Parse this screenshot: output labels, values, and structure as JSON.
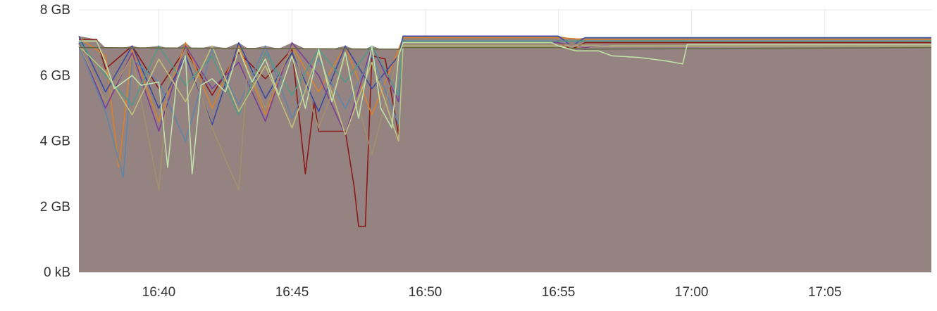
{
  "chart_data": {
    "type": "area",
    "y_unit": "bytes",
    "x_range": [
      "16:37",
      "17:09"
    ],
    "y_range": [
      0,
      8
    ],
    "y_ticks": [
      {
        "value": 0,
        "label": "0 kB"
      },
      {
        "value": 2,
        "label": "2 GB"
      },
      {
        "value": 4,
        "label": "4 GB"
      },
      {
        "value": 6,
        "label": "6 GB"
      },
      {
        "value": 8,
        "label": "8 GB"
      }
    ],
    "x_ticks": [
      {
        "value": "16:40",
        "label": "16:40"
      },
      {
        "value": "16:45",
        "label": "16:45"
      },
      {
        "value": "16:50",
        "label": "16:50"
      },
      {
        "value": "16:55",
        "label": "16:55"
      },
      {
        "value": "17:00",
        "label": "17:00"
      },
      {
        "value": "17:05",
        "label": "17:05"
      }
    ],
    "grid": true,
    "legend": "none",
    "fill_color": "#948380",
    "series": [
      {
        "color": "#8b1a1a",
        "points": [
          [
            "16:37",
            7.1
          ],
          [
            "16:37:40",
            7.1
          ],
          [
            "16:38",
            6.2
          ],
          [
            "16:39",
            6.9
          ],
          [
            "16:40",
            5.6
          ],
          [
            "16:41",
            6.8
          ],
          [
            "16:42",
            5.4
          ],
          [
            "16:43",
            6.7
          ],
          [
            "16:44",
            5.9
          ],
          [
            "16:45",
            6.8
          ],
          [
            "16:45:30",
            3.0
          ],
          [
            "16:45:50",
            5.2
          ],
          [
            "16:46",
            4.3
          ],
          [
            "16:47",
            4.3
          ],
          [
            "16:47:20",
            2.6
          ],
          [
            "16:47:30",
            1.4
          ],
          [
            "16:47:45",
            1.4
          ],
          [
            "16:48",
            6.6
          ],
          [
            "16:48:30",
            6.5
          ],
          [
            "16:49",
            4.2
          ],
          [
            "16:49:10",
            7.0
          ],
          [
            "16:55",
            7.0
          ],
          [
            "16:55:30",
            6.8
          ],
          [
            "16:56",
            7.0
          ],
          [
            "17:09",
            7.0
          ]
        ]
      },
      {
        "color": "#d9822b",
        "points": [
          [
            "16:37",
            7.15
          ],
          [
            "16:38",
            6.6
          ],
          [
            "16:38:30",
            3.2
          ],
          [
            "16:39",
            6.8
          ],
          [
            "16:40",
            4.6
          ],
          [
            "16:41",
            7.0
          ],
          [
            "16:42",
            5.0
          ],
          [
            "16:43",
            6.9
          ],
          [
            "16:44",
            4.8
          ],
          [
            "16:45",
            6.9
          ],
          [
            "16:46",
            5.5
          ],
          [
            "16:47",
            6.9
          ],
          [
            "16:48",
            4.8
          ],
          [
            "16:49",
            6.8
          ],
          [
            "16:49:10",
            7.15
          ],
          [
            "16:55",
            7.15
          ],
          [
            "16:56",
            7.1
          ],
          [
            "17:09",
            7.1
          ]
        ]
      },
      {
        "color": "#3b4ba0",
        "points": [
          [
            "16:37",
            7.2
          ],
          [
            "16:38",
            5.5
          ],
          [
            "16:39",
            6.9
          ],
          [
            "16:40",
            5.0
          ],
          [
            "16:41",
            6.6
          ],
          [
            "16:42",
            4.5
          ],
          [
            "16:43",
            7.0
          ],
          [
            "16:44",
            5.3
          ],
          [
            "16:45",
            6.7
          ],
          [
            "16:46",
            4.9
          ],
          [
            "16:47",
            6.9
          ],
          [
            "16:48",
            5.6
          ],
          [
            "16:49",
            6.6
          ],
          [
            "16:49:10",
            7.2
          ],
          [
            "16:55",
            7.2
          ],
          [
            "16:55:30",
            6.9
          ],
          [
            "16:56",
            7.15
          ],
          [
            "17:09",
            7.15
          ]
        ]
      },
      {
        "color": "#7b3f98",
        "points": [
          [
            "16:37",
            7.0
          ],
          [
            "16:38",
            5.0
          ],
          [
            "16:39",
            6.7
          ],
          [
            "16:40",
            4.3
          ],
          [
            "16:41",
            6.9
          ],
          [
            "16:42",
            5.6
          ],
          [
            "16:43",
            6.4
          ],
          [
            "16:44",
            4.6
          ],
          [
            "16:45",
            7.0
          ],
          [
            "16:46",
            6.0
          ],
          [
            "16:47",
            4.2
          ],
          [
            "16:48",
            6.9
          ],
          [
            "16:49",
            5.2
          ],
          [
            "16:49:10",
            7.0
          ],
          [
            "16:55",
            7.0
          ],
          [
            "16:56",
            6.85
          ],
          [
            "16:57",
            6.95
          ],
          [
            "17:09",
            6.95
          ]
        ]
      },
      {
        "color": "#5f86a8",
        "points": [
          [
            "16:37",
            6.9
          ],
          [
            "16:38",
            4.9
          ],
          [
            "16:38:40",
            2.9
          ],
          [
            "16:39",
            6.5
          ],
          [
            "16:40",
            5.8
          ],
          [
            "16:41",
            4.0
          ],
          [
            "16:42",
            6.8
          ],
          [
            "16:43",
            5.1
          ],
          [
            "16:44",
            6.9
          ],
          [
            "16:45",
            4.7
          ],
          [
            "16:46",
            6.5
          ],
          [
            "16:47",
            5.0
          ],
          [
            "16:48",
            6.6
          ],
          [
            "16:49",
            4.5
          ],
          [
            "16:49:10",
            7.05
          ],
          [
            "17:09",
            7.05
          ]
        ]
      },
      {
        "color": "#a5906e",
        "points": [
          [
            "16:37",
            6.95
          ],
          [
            "16:38",
            5.2
          ],
          [
            "16:39",
            6.6
          ],
          [
            "16:40",
            2.5
          ],
          [
            "16:40:20",
            5.7
          ],
          [
            "16:41",
            6.8
          ],
          [
            "16:42",
            4.4
          ],
          [
            "16:43",
            2.5
          ],
          [
            "16:43:20",
            6.2
          ],
          [
            "16:44",
            5.0
          ],
          [
            "16:45",
            6.9
          ],
          [
            "16:46",
            4.4
          ],
          [
            "16:47",
            6.5
          ],
          [
            "16:48",
            3.6
          ],
          [
            "16:49",
            6.7
          ],
          [
            "16:49:10",
            6.95
          ],
          [
            "17:09",
            6.95
          ]
        ]
      },
      {
        "color": "#4f9b8a",
        "points": [
          [
            "16:37",
            7.05
          ],
          [
            "16:38",
            6.0
          ],
          [
            "16:39",
            5.1
          ],
          [
            "16:40",
            6.9
          ],
          [
            "16:41",
            5.7
          ],
          [
            "16:42",
            6.6
          ],
          [
            "16:43",
            4.8
          ],
          [
            "16:44",
            6.7
          ],
          [
            "16:45",
            5.4
          ],
          [
            "16:46",
            6.8
          ],
          [
            "16:47",
            5.8
          ],
          [
            "16:48",
            6.9
          ],
          [
            "16:49",
            5.4
          ],
          [
            "16:49:10",
            7.05
          ],
          [
            "17:09",
            7.05
          ]
        ]
      },
      {
        "color": "#c0c07a",
        "points": [
          [
            "16:37",
            6.9
          ],
          [
            "16:38",
            6.1
          ],
          [
            "16:39",
            4.8
          ],
          [
            "16:40",
            6.5
          ],
          [
            "16:41",
            5.2
          ],
          [
            "16:42",
            6.9
          ],
          [
            "16:43",
            4.9
          ],
          [
            "16:44",
            6.3
          ],
          [
            "16:45",
            4.4
          ],
          [
            "16:46",
            6.7
          ],
          [
            "16:47",
            4.2
          ],
          [
            "16:48",
            6.4
          ],
          [
            "16:49",
            4.0
          ],
          [
            "16:49:10",
            6.9
          ],
          [
            "17:09",
            6.9
          ]
        ]
      },
      {
        "color": "#6a6a48",
        "points": [
          [
            "16:37",
            6.85
          ],
          [
            "16:49",
            6.8
          ],
          [
            "16:49:10",
            6.85
          ],
          [
            "16:55",
            6.85
          ],
          [
            "16:56",
            6.8
          ],
          [
            "17:09",
            6.85
          ]
        ]
      },
      {
        "color": "#bfe0a8",
        "points": [
          [
            "16:37",
            7.05
          ],
          [
            "16:37:40",
            7.05
          ],
          [
            "16:38",
            6.4
          ],
          [
            "16:38:20",
            5.6
          ],
          [
            "16:39",
            6.0
          ],
          [
            "16:39:20",
            5.7
          ],
          [
            "16:40",
            5.8
          ],
          [
            "16:40:20",
            3.2
          ],
          [
            "16:40:40",
            5.8
          ],
          [
            "16:41",
            6.6
          ],
          [
            "16:41:15",
            3.0
          ],
          [
            "16:41:35",
            5.7
          ],
          [
            "16:42",
            5.9
          ],
          [
            "16:42:30",
            5.5
          ],
          [
            "16:43",
            6.8
          ],
          [
            "16:43:30",
            5.8
          ],
          [
            "16:44",
            6.5
          ],
          [
            "16:44:30",
            5.4
          ],
          [
            "16:45",
            6.6
          ],
          [
            "16:45:30",
            5.0
          ],
          [
            "16:46",
            6.8
          ],
          [
            "16:46:30",
            5.2
          ],
          [
            "16:47",
            6.7
          ],
          [
            "16:47:30",
            4.7
          ],
          [
            "16:48",
            6.9
          ],
          [
            "16:48:20",
            5.0
          ],
          [
            "16:48:45",
            4.4
          ],
          [
            "16:49",
            6.6
          ],
          [
            "16:49:10",
            7.0
          ],
          [
            "16:54:45",
            7.0
          ],
          [
            "16:55",
            6.9
          ],
          [
            "16:55:40",
            6.75
          ],
          [
            "16:56:30",
            6.75
          ],
          [
            "16:57",
            6.6
          ],
          [
            "16:58",
            6.55
          ],
          [
            "16:59",
            6.45
          ],
          [
            "16:59:40",
            6.35
          ],
          [
            "16:59:50",
            6.95
          ],
          [
            "17:09",
            6.95
          ]
        ]
      }
    ]
  }
}
